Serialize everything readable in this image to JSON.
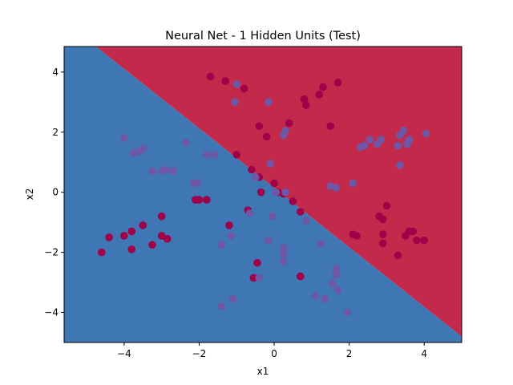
{
  "chart_data": {
    "type": "scatter",
    "title": "Neural Net - 1 Hidden Units (Test)",
    "xlabel": "x1",
    "ylabel": "x2",
    "xlim": [
      -5.6,
      5.0
    ],
    "ylim": [
      -5.0,
      4.85
    ],
    "xticks": [
      -4,
      -2,
      0,
      2,
      4
    ],
    "yticks": [
      -4,
      -2,
      0,
      2,
      4
    ],
    "grid": false,
    "legend": "none",
    "decision_boundary": {
      "line": [
        [
          -4.75,
          4.85
        ],
        [
          5.0,
          -4.8
        ]
      ],
      "region_above_color": "#c3294a",
      "region_below_color": "#3f76b4"
    },
    "series": [
      {
        "color": "#9e014a",
        "points": [
          [
            -1.7,
            3.85
          ],
          [
            -1.3,
            3.7
          ],
          [
            -0.8,
            3.45
          ],
          [
            1.3,
            3.5
          ],
          [
            1.7,
            3.65
          ],
          [
            0.8,
            3.1
          ],
          [
            1.2,
            3.25
          ],
          [
            0.85,
            2.9
          ],
          [
            0.4,
            2.3
          ],
          [
            -0.4,
            2.2
          ],
          [
            1.5,
            2.2
          ],
          [
            -0.2,
            1.85
          ],
          [
            -1.0,
            1.25
          ],
          [
            -0.6,
            0.75
          ],
          [
            -0.4,
            0.5
          ],
          [
            0.0,
            0.3
          ],
          [
            -0.35,
            0.0
          ],
          [
            0.1,
            0.0
          ],
          [
            0.25,
            -0.05
          ],
          [
            0.5,
            -0.3
          ],
          [
            0.7,
            -0.65
          ],
          [
            -0.7,
            -0.6
          ],
          [
            -1.2,
            -1.1
          ],
          [
            -2.1,
            -0.25
          ],
          [
            -2.0,
            -0.25
          ],
          [
            -1.8,
            -0.25
          ],
          [
            -3.0,
            -0.8
          ],
          [
            -3.5,
            -1.1
          ],
          [
            -3.8,
            -1.3
          ],
          [
            -4.0,
            -1.45
          ],
          [
            -4.4,
            -1.5
          ],
          [
            -3.0,
            -1.45
          ],
          [
            -2.85,
            -1.55
          ],
          [
            -3.25,
            -1.75
          ],
          [
            -3.8,
            -1.9
          ],
          [
            -4.6,
            -2.0
          ],
          [
            -0.45,
            -2.35
          ],
          [
            -0.55,
            -2.85
          ],
          [
            0.7,
            -2.8
          ],
          [
            2.8,
            -0.8
          ],
          [
            2.9,
            -0.9
          ],
          [
            3.0,
            -0.45
          ],
          [
            2.1,
            -1.4
          ],
          [
            2.2,
            -1.45
          ],
          [
            2.9,
            -1.4
          ],
          [
            3.6,
            -1.3
          ],
          [
            3.7,
            -1.3
          ],
          [
            3.5,
            -1.45
          ],
          [
            3.8,
            -1.6
          ],
          [
            4.0,
            -1.6
          ],
          [
            2.9,
            -1.7
          ],
          [
            3.3,
            -2.1
          ]
        ]
      },
      {
        "color": "#6e57a5",
        "points": [
          [
            -1.0,
            3.6
          ],
          [
            -1.05,
            3.0
          ],
          [
            -0.15,
            3.0
          ],
          [
            0.25,
            1.9
          ],
          [
            0.3,
            2.05
          ],
          [
            -4.0,
            1.8
          ],
          [
            -3.75,
            1.3
          ],
          [
            -3.6,
            1.35
          ],
          [
            -3.5,
            1.45
          ],
          [
            -2.35,
            1.65
          ],
          [
            -1.8,
            1.25
          ],
          [
            -1.6,
            1.25
          ],
          [
            -3.25,
            0.7
          ],
          [
            -3.0,
            0.7
          ],
          [
            -2.9,
            0.75
          ],
          [
            -2.7,
            0.7
          ],
          [
            -2.15,
            0.3
          ],
          [
            -2.05,
            0.3
          ],
          [
            -0.1,
            0.95
          ],
          [
            -0.5,
            0.5
          ],
          [
            0.05,
            0.0
          ],
          [
            0.3,
            0.0
          ],
          [
            -0.65,
            -0.7
          ],
          [
            -0.05,
            -0.8
          ],
          [
            0.85,
            -0.95
          ],
          [
            -1.15,
            -1.45
          ],
          [
            -0.15,
            -1.6
          ],
          [
            -1.4,
            -1.75
          ],
          [
            1.25,
            -1.7
          ],
          [
            0.25,
            -1.85
          ],
          [
            0.25,
            -2.05
          ],
          [
            0.25,
            -2.3
          ],
          [
            1.65,
            -2.55
          ],
          [
            1.65,
            -2.75
          ],
          [
            1.55,
            -3.05
          ],
          [
            1.7,
            -3.25
          ],
          [
            1.1,
            -3.45
          ],
          [
            1.35,
            -3.55
          ],
          [
            -1.1,
            -3.55
          ],
          [
            -1.4,
            -3.8
          ],
          [
            1.95,
            -4.0
          ],
          [
            -0.4,
            -2.85
          ],
          [
            1.5,
            0.2
          ],
          [
            1.65,
            0.15
          ],
          [
            2.1,
            0.3
          ],
          [
            2.3,
            1.5
          ],
          [
            2.4,
            1.55
          ],
          [
            2.55,
            1.75
          ],
          [
            2.75,
            1.6
          ],
          [
            2.85,
            1.75
          ],
          [
            3.35,
            1.9
          ],
          [
            3.45,
            2.05
          ],
          [
            3.3,
            1.55
          ],
          [
            3.55,
            1.6
          ],
          [
            3.6,
            1.75
          ],
          [
            3.35,
            0.9
          ],
          [
            4.05,
            1.95
          ]
        ]
      }
    ]
  }
}
